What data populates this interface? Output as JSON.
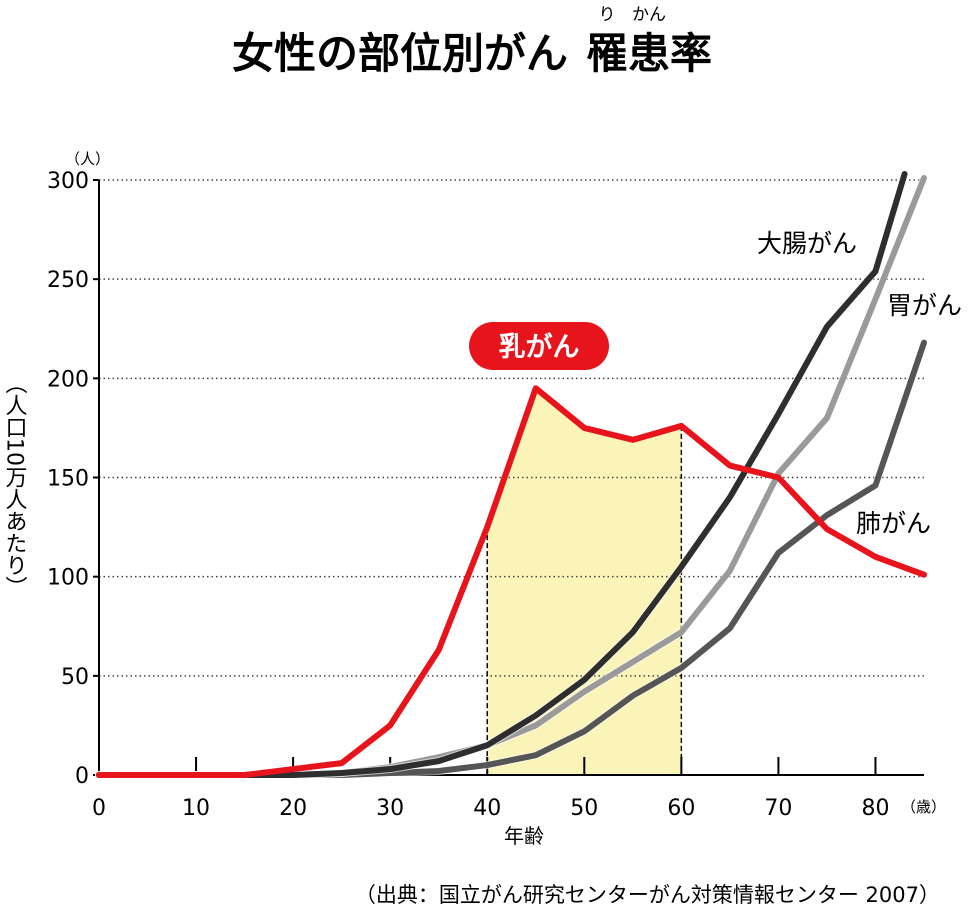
{
  "title_parts": {
    "before": "女性の部位別がん",
    "kanji_ri": "罹",
    "kanji_kan": "患",
    "after": "率",
    "ruby_ri": "り",
    "ruby_kan": "かん"
  },
  "source": "（出典：国立がん研究センターがん対策情報センター 2007）",
  "colors": {
    "breast": "#e8141c",
    "colorectal": "#2e2e2e",
    "stomach": "#9a9a9a",
    "lung": "#555555",
    "highlight": "#fbf4b8",
    "callout": "#e8141c"
  },
  "chart_data": {
    "type": "line",
    "title": "女性の部位別がん罹患率",
    "xlabel": "年齢",
    "x_unit": "（歳）",
    "ylabel": "（人口10万人あたり）",
    "y_unit": "（人）",
    "xlim": [
      0,
      85
    ],
    "ylim": [
      0,
      300
    ],
    "x_ticks": [
      0,
      10,
      20,
      30,
      40,
      50,
      60,
      70,
      80
    ],
    "y_ticks": [
      0,
      50,
      100,
      150,
      200,
      250,
      300
    ],
    "grid": "horizontal-dotted",
    "highlight_range": [
      40,
      60
    ],
    "series": [
      {
        "name": "乳がん",
        "key": "breast",
        "x": [
          0,
          5,
          10,
          15,
          20,
          25,
          30,
          35,
          40,
          45,
          50,
          55,
          60,
          65,
          70,
          75,
          80,
          85
        ],
        "y": [
          0,
          0,
          0,
          0,
          3,
          6,
          25,
          63,
          125,
          195,
          175,
          169,
          176,
          156,
          150,
          124,
          110,
          101
        ]
      },
      {
        "name": "大腸がん",
        "key": "colorectal",
        "x": [
          0,
          5,
          10,
          15,
          20,
          25,
          30,
          35,
          40,
          45,
          50,
          55,
          60,
          65,
          70,
          75,
          80,
          83
        ],
        "y": [
          0,
          0,
          0,
          0,
          0,
          1,
          3,
          7,
          15,
          30,
          48,
          72,
          105,
          140,
          182,
          226,
          254,
          303
        ]
      },
      {
        "name": "胃がん",
        "key": "stomach",
        "x": [
          0,
          5,
          10,
          15,
          20,
          25,
          30,
          35,
          40,
          45,
          50,
          55,
          60,
          65,
          70,
          75,
          80,
          85
        ],
        "y": [
          0,
          0,
          0,
          0,
          0,
          1,
          4,
          9,
          15,
          25,
          42,
          57,
          72,
          103,
          152,
          180,
          240,
          301
        ]
      },
      {
        "name": "肺がん",
        "key": "lung",
        "x": [
          0,
          5,
          10,
          15,
          20,
          25,
          30,
          35,
          40,
          45,
          50,
          55,
          60,
          65,
          70,
          75,
          80,
          85
        ],
        "y": [
          0,
          0,
          0,
          0,
          0,
          0,
          1,
          2,
          5,
          10,
          22,
          40,
          54,
          74,
          112,
          131,
          146,
          218
        ]
      }
    ]
  }
}
